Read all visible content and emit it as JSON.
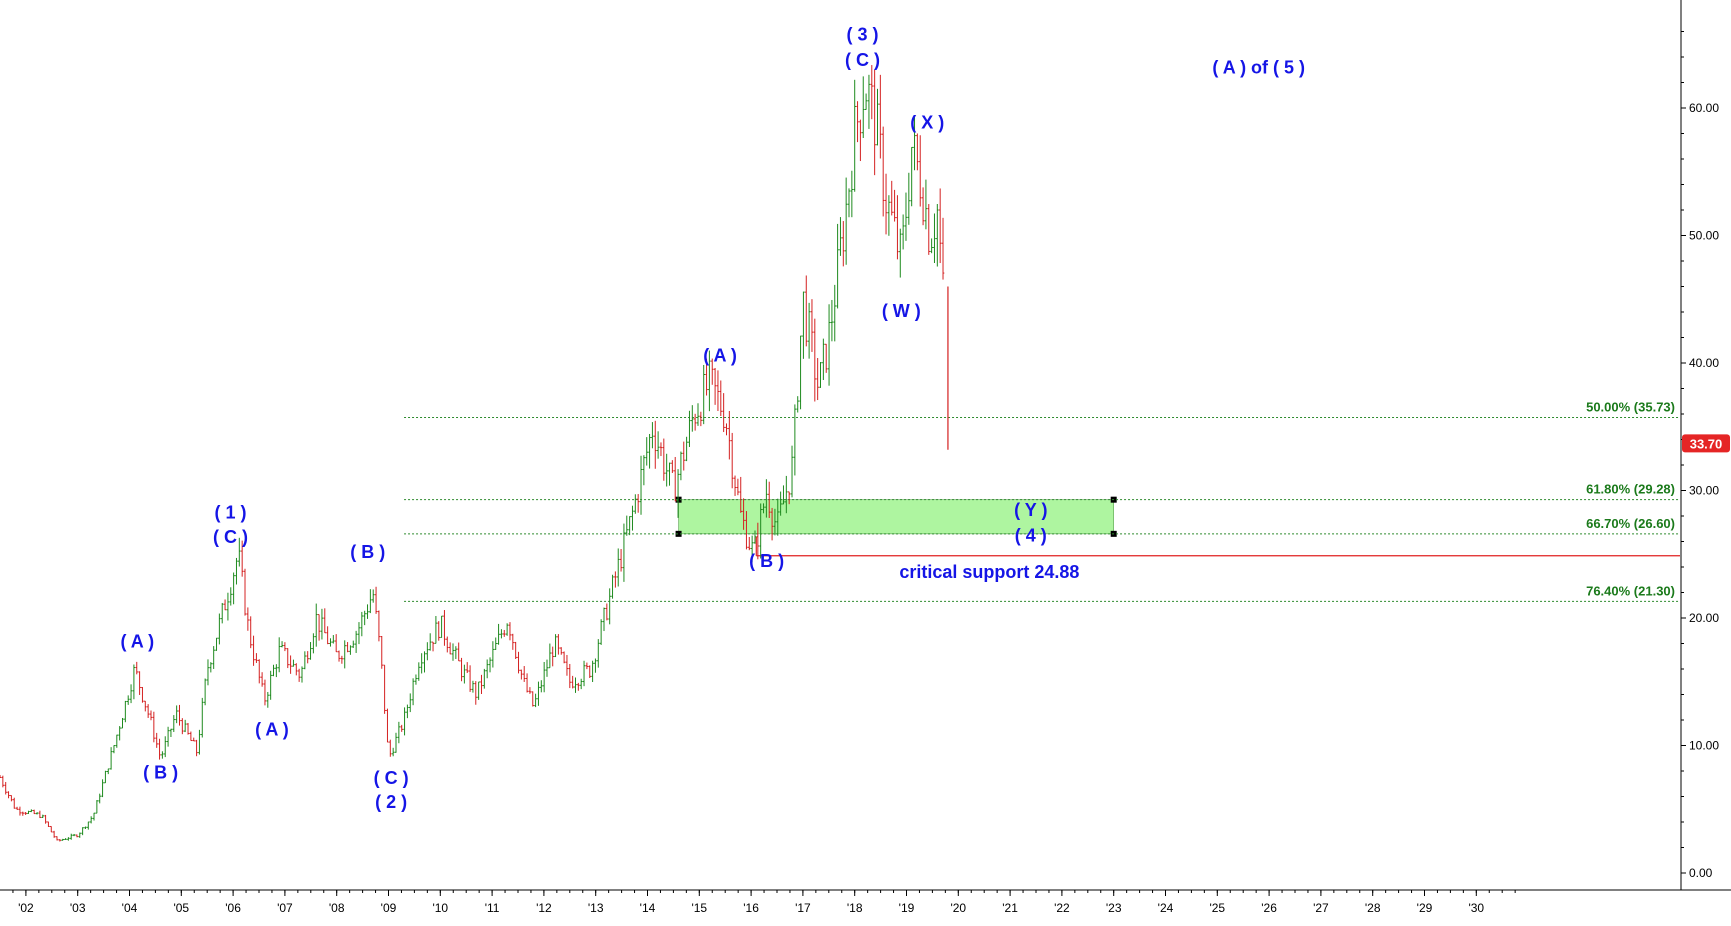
{
  "chart_data": {
    "type": "candlestick",
    "title": "",
    "xlabel": "",
    "ylabel": "",
    "xlim": [
      2001.5,
      2031.0
    ],
    "ylim": [
      -2,
      68
    ],
    "y_ticks": [
      "0.00",
      "10.00",
      "20.00",
      "30.00",
      "40.00",
      "50.00",
      "60.00"
    ],
    "x_ticks": [
      "'02",
      "'03",
      "'04",
      "'05",
      "'06",
      "'07",
      "'08",
      "'09",
      "'10",
      "'11",
      "'12",
      "'13",
      "'14",
      "'15",
      "'16",
      "'17",
      "'18",
      "'19",
      "'20",
      "'21",
      "'22",
      "'23",
      "'24",
      "'25",
      "'26",
      "'27",
      "'28",
      "'29",
      "'30"
    ],
    "last_price": {
      "value": 33.7,
      "label": "33.70"
    },
    "price_path": [
      [
        2001.5,
        7.5
      ],
      [
        2001.8,
        5.0
      ],
      [
        2002.3,
        4.5
      ],
      [
        2002.6,
        2.5
      ],
      [
        2003.0,
        3.0
      ],
      [
        2003.3,
        4.5
      ],
      [
        2003.7,
        10.0
      ],
      [
        2004.1,
        16.0
      ],
      [
        2004.4,
        12.0
      ],
      [
        2004.6,
        9.0
      ],
      [
        2004.9,
        12.5
      ],
      [
        2005.3,
        9.5
      ],
      [
        2005.5,
        16.0
      ],
      [
        2005.9,
        22.0
      ],
      [
        2006.1,
        25.0
      ],
      [
        2006.3,
        19.0
      ],
      [
        2006.6,
        13.5
      ],
      [
        2006.9,
        17.5
      ],
      [
        2007.3,
        15.5
      ],
      [
        2007.6,
        20.0
      ],
      [
        2008.0,
        17.0
      ],
      [
        2008.4,
        19.0
      ],
      [
        2008.7,
        22.0
      ],
      [
        2008.85,
        17.0
      ],
      [
        2009.0,
        9.0
      ],
      [
        2009.3,
        12.0
      ],
      [
        2009.6,
        17.0
      ],
      [
        2010.0,
        19.5
      ],
      [
        2010.4,
        16.0
      ],
      [
        2010.7,
        14.0
      ],
      [
        2011.0,
        17.0
      ],
      [
        2011.3,
        20.0
      ],
      [
        2011.6,
        15.0
      ],
      [
        2011.8,
        13.0
      ],
      [
        2012.2,
        18.0
      ],
      [
        2012.5,
        15.0
      ],
      [
        2012.9,
        16.0
      ],
      [
        2013.3,
        22.0
      ],
      [
        2013.7,
        28.0
      ],
      [
        2014.1,
        35.0
      ],
      [
        2014.5,
        30.0
      ],
      [
        2014.9,
        36.0
      ],
      [
        2015.2,
        38.5
      ],
      [
        2015.5,
        36.0
      ],
      [
        2015.8,
        28.0
      ],
      [
        2016.05,
        25.0
      ],
      [
        2016.3,
        30.0
      ],
      [
        2016.5,
        27.0
      ],
      [
        2016.8,
        32.0
      ],
      [
        2017.0,
        45.0
      ],
      [
        2017.3,
        38.0
      ],
      [
        2017.5,
        42.0
      ],
      [
        2017.8,
        51.0
      ],
      [
        2018.0,
        58.0
      ],
      [
        2018.2,
        62.0
      ],
      [
        2018.4,
        59.0
      ],
      [
        2018.6,
        53.0
      ],
      [
        2018.9,
        48.0
      ],
      [
        2019.1,
        57.0
      ],
      [
        2019.3,
        54.0
      ],
      [
        2019.45,
        50.0
      ],
      [
        2019.6,
        52.0
      ],
      [
        2019.75,
        43.0
      ],
      [
        2019.8,
        33.7
      ]
    ],
    "fib_levels": [
      {
        "label": "50.00% (35.73)",
        "value": 35.73
      },
      {
        "label": "61.80% (29.28)",
        "value": 29.28
      },
      {
        "label": "66.70% (26.60)",
        "value": 26.6
      },
      {
        "label": "76.40% (21.30)",
        "value": 21.3
      }
    ],
    "target_zone": {
      "x_start": 2014.6,
      "x_end": 2023.0,
      "y_low": 26.6,
      "y_high": 29.28,
      "color": "#aef5a0"
    },
    "critical_support": {
      "value": 24.88,
      "x_start": 2016.1,
      "label": "critical support 24.88",
      "color": "#e02020"
    },
    "wave_labels": [
      {
        "text": "( A )",
        "x": 2004.15,
        "y": 17.7
      },
      {
        "text": "( B )",
        "x": 2004.6,
        "y": 7.4
      },
      {
        "text": "( 1 )",
        "x": 2005.95,
        "y": 27.8
      },
      {
        "text": "( C )",
        "x": 2005.95,
        "y": 25.9
      },
      {
        "text": "( A )",
        "x": 2006.75,
        "y": 10.8
      },
      {
        "text": "( B )",
        "x": 2008.6,
        "y": 24.7
      },
      {
        "text": "( C )",
        "x": 2009.05,
        "y": 7.0
      },
      {
        "text": "( 2 )",
        "x": 2009.05,
        "y": 5.1
      },
      {
        "text": "( A )",
        "x": 2015.4,
        "y": 40.1
      },
      {
        "text": "( B )",
        "x": 2016.3,
        "y": 24.0
      },
      {
        "text": "( 3 )",
        "x": 2018.15,
        "y": 65.3
      },
      {
        "text": "( C )",
        "x": 2018.15,
        "y": 63.3
      },
      {
        "text": "( X )",
        "x": 2019.4,
        "y": 58.4
      },
      {
        "text": "( W )",
        "x": 2018.9,
        "y": 43.6
      },
      {
        "text": "( Y )",
        "x": 2021.4,
        "y": 28.0
      },
      {
        "text": "( 4 )",
        "x": 2021.4,
        "y": 26.0
      },
      {
        "text": "( A ) of ( 5 )",
        "x": 2025.8,
        "y": 62.7
      }
    ]
  }
}
